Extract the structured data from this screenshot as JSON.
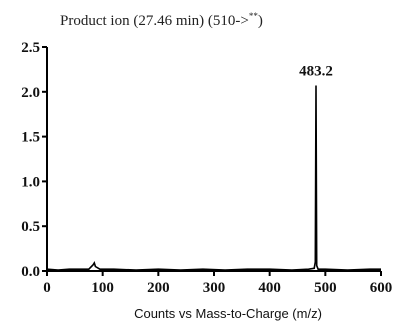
{
  "chart_data": {
    "type": "line",
    "title_main": "Product ion (27.46 min) (510->",
    "title_sup": "**",
    "title_end": ")",
    "xlabel": "Counts vs Mass-to-Charge (m/z)",
    "ylabel": "",
    "xlim": [
      0,
      600
    ],
    "ylim": [
      0,
      2.5
    ],
    "x_ticks": [
      0,
      100,
      200,
      300,
      400,
      500,
      600
    ],
    "x_tick_labels": [
      "0",
      "100",
      "200",
      "300",
      "400",
      "500",
      "600"
    ],
    "y_ticks": [
      0,
      0.5,
      1.0,
      1.5,
      2.0,
      2.5
    ],
    "y_tick_labels": [
      "0.0",
      "0.5",
      "1.0",
      "1.5",
      "2.0",
      "2.5"
    ],
    "grid": false,
    "annotations": [
      {
        "x": 483.2,
        "y": 2.07,
        "text": "483.2"
      }
    ],
    "series": [
      {
        "x": [
          0,
          20,
          40,
          60,
          75,
          83,
          85,
          87,
          95,
          120,
          160,
          200,
          240,
          280,
          320,
          360,
          400,
          440,
          470,
          480,
          482,
          483.2,
          484.5,
          487,
          500,
          540,
          580,
          600
        ],
        "y": [
          0.02,
          0.01,
          0.02,
          0.02,
          0.02,
          0.07,
          0.09,
          0.05,
          0.02,
          0.02,
          0.01,
          0.02,
          0.01,
          0.02,
          0.01,
          0.02,
          0.02,
          0.01,
          0.02,
          0.03,
          0.1,
          2.07,
          0.06,
          0.02,
          0.02,
          0.01,
          0.02,
          0.02
        ]
      }
    ]
  }
}
